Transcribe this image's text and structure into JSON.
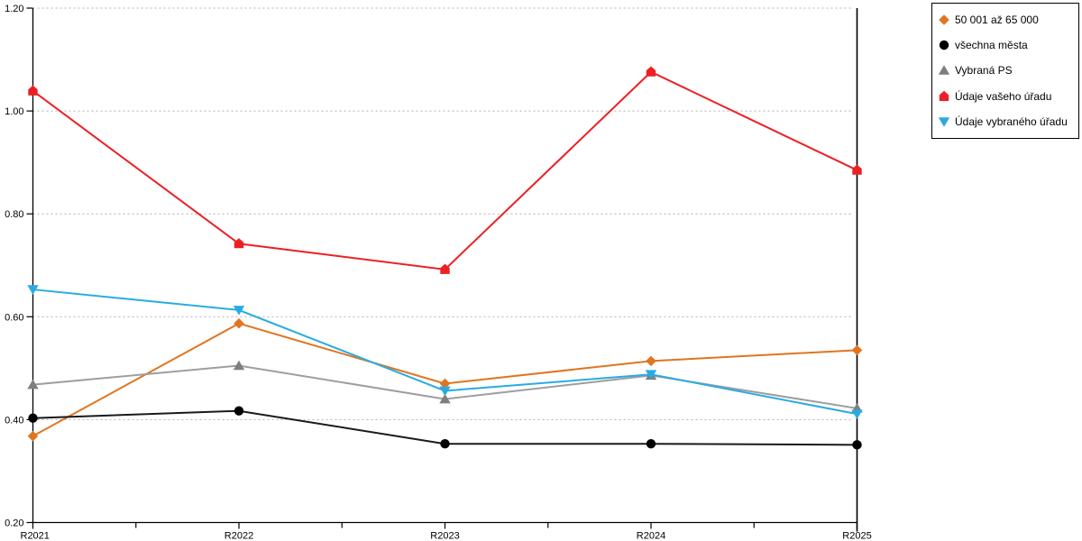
{
  "chart_data": {
    "type": "line",
    "title": "",
    "xlabel": "",
    "ylabel": "",
    "categories": [
      "R2021",
      "R2022",
      "R2023",
      "R2024",
      "R2025"
    ],
    "series": [
      {
        "name": "50 001 až 65 000",
        "marker": "diamond",
        "color": "#E0751F",
        "line_color": "#E0751F",
        "values": [
          0.368,
          0.587,
          0.47,
          0.514,
          0.535
        ]
      },
      {
        "name": "všechna města",
        "marker": "circle",
        "color": "#000000",
        "line_color": "#1A1A1A",
        "values": [
          0.403,
          0.417,
          0.353,
          0.353,
          0.351
        ]
      },
      {
        "name": "Vybraná PS",
        "marker": "triangle-up",
        "color": "#7F7F7F",
        "line_color": "#9E9E9E",
        "values": [
          0.468,
          0.505,
          0.44,
          0.486,
          0.422
        ]
      },
      {
        "name": "Údaje vašeho úřadu",
        "marker": "pentagon",
        "color": "#EC2024",
        "line_color": "#EC2024",
        "values": [
          1.039,
          0.742,
          0.692,
          1.076,
          0.885
        ]
      },
      {
        "name": "Údaje vybraného úřadu",
        "marker": "triangle-down",
        "color": "#29ABE2",
        "line_color": "#29ABE2",
        "values": [
          0.653,
          0.613,
          0.456,
          0.488,
          0.411
        ]
      }
    ],
    "y_axis": {
      "min": 0.2,
      "max": 1.2,
      "step": 0.2,
      "tick_labels": [
        "0.20",
        "0.40",
        "0.60",
        "0.80",
        "1.00",
        "1.20"
      ]
    },
    "x_axis": {
      "tick_labels": [
        "R2021",
        "R2022",
        "R2023",
        "R2024",
        "R2025"
      ],
      "minor_ticks_at_midpoints": true
    },
    "grid": "horizontal dotted",
    "grid_color": "#B0B0B0",
    "axis_color": "#000000",
    "legend_position": "top-right"
  }
}
